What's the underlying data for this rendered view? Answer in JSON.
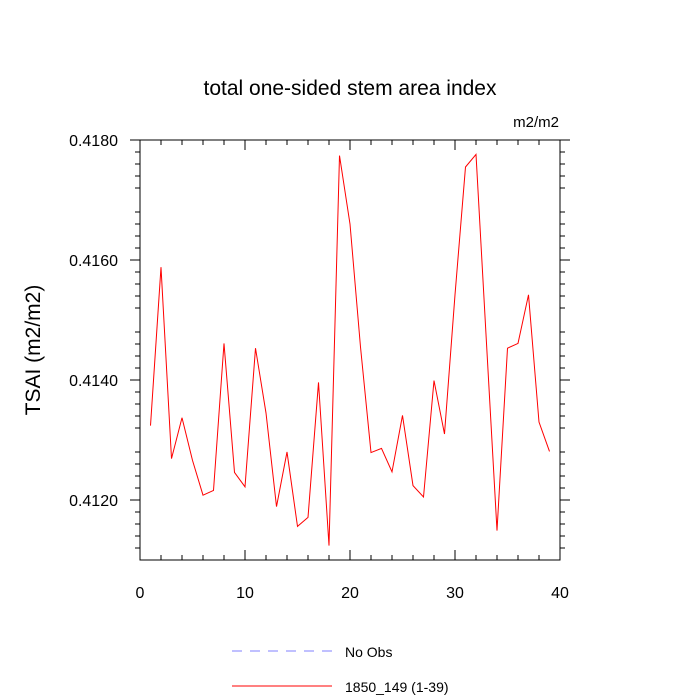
{
  "chart_data": {
    "type": "line",
    "title": "total one-sided stem area index",
    "units_label": "m2/m2",
    "ylabel": "TSAI  (m2/m2)",
    "xlabel": "",
    "xlim": [
      0,
      40
    ],
    "ylim": [
      0.411,
      0.418
    ],
    "x_ticks": [
      0,
      10,
      20,
      30,
      40
    ],
    "x_tick_labels": [
      "0",
      "10",
      "20",
      "30",
      "40"
    ],
    "y_ticks": [
      0.412,
      0.414,
      0.416,
      0.418
    ],
    "y_tick_labels": [
      "0.4120",
      "0.4140",
      "0.4160",
      "0.4180"
    ],
    "grid": false,
    "legend_position": "bottom",
    "series": [
      {
        "name": "No Obs",
        "color": "#8080ff",
        "dash": "dashed",
        "x": [],
        "y": []
      },
      {
        "name": "1850_149 (1-39)",
        "color": "#ff0000",
        "dash": "solid",
        "x": [
          1,
          2,
          3,
          4,
          5,
          6,
          7,
          8,
          9,
          10,
          11,
          12,
          13,
          14,
          15,
          16,
          17,
          18,
          19,
          20,
          21,
          22,
          23,
          24,
          25,
          26,
          27,
          28,
          29,
          30,
          31,
          32,
          33,
          34,
          35,
          36,
          37,
          38,
          39
        ],
        "y": [
          0.41324,
          0.41588,
          0.41269,
          0.41337,
          0.41266,
          0.41208,
          0.41216,
          0.41461,
          0.41246,
          0.41222,
          0.41453,
          0.41345,
          0.41189,
          0.4128,
          0.41156,
          0.41171,
          0.41396,
          0.41124,
          0.41774,
          0.4166,
          0.41455,
          0.41279,
          0.41286,
          0.41247,
          0.41341,
          0.41224,
          0.41205,
          0.41399,
          0.4131,
          0.41542,
          0.41755,
          0.41776,
          0.41461,
          0.41149,
          0.41453,
          0.41461,
          0.41542,
          0.4133,
          0.41281
        ]
      }
    ]
  }
}
